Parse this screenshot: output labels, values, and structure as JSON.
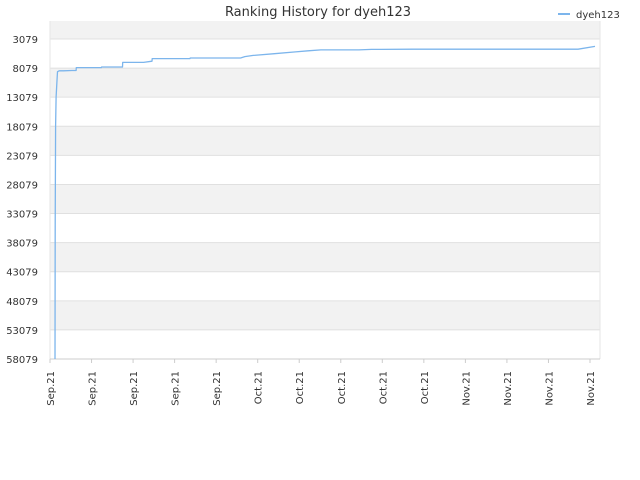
{
  "chart_data": {
    "type": "line",
    "title": "Ranking History for dyeh123",
    "xlabel": "",
    "ylabel": "",
    "y_reversed": true,
    "ylim": [
      58079,
      3079
    ],
    "y_ticks": [
      "3079",
      "8079",
      "13079",
      "18079",
      "23079",
      "28079",
      "33079",
      "38079",
      "43079",
      "48079",
      "53079",
      "58079"
    ],
    "x_ticks": [
      "Sep.21",
      "Sep.21",
      "Sep.21",
      "Sep.21",
      "Sep.21",
      "Oct.21",
      "Oct.21",
      "Oct.21",
      "Oct.21",
      "Oct.21",
      "Nov.21",
      "Nov.21",
      "Nov.21",
      "Nov.21"
    ],
    "grid": true,
    "legend_position": "top-right",
    "series": [
      {
        "name": "dyeh123",
        "color": "#7cb5ec",
        "x": [
          0,
          0.05,
          0.15,
          0.25,
          0.45,
          0.6,
          1,
          2,
          4,
          5,
          5.05,
          11,
          11.05,
          16,
          16.05,
          21,
          23,
          23.05,
          32,
          32.05,
          42,
          44,
          45,
          47,
          52,
          57,
          60,
          63,
          72,
          75,
          76,
          85,
          100,
          104,
          112,
          124,
          128
        ],
        "values": [
          58079,
          35000,
          18000,
          13079,
          10500,
          8700,
          8550,
          8550,
          8500,
          8500,
          8000,
          8000,
          7900,
          7900,
          7100,
          7100,
          6900,
          6450,
          6450,
          6350,
          6350,
          6350,
          6100,
          5900,
          5600,
          5300,
          5100,
          4950,
          4950,
          4870,
          4870,
          4840,
          4840,
          4840,
          4840,
          4840,
          4350
        ]
      }
    ]
  }
}
